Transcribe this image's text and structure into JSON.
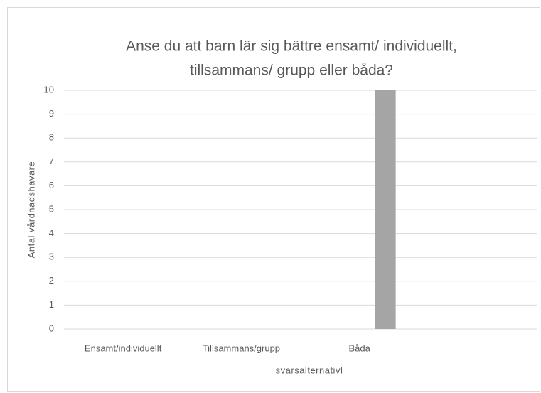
{
  "chart_data": {
    "type": "bar",
    "title": [
      "Anse du att barn lär sig bättre ensamt/ individuellt,",
      "tillsammans/ grupp eller båda?"
    ],
    "x_label": "svarsalternativl",
    "y_label": "Antal vårdnadshavare",
    "categories": [
      "Ensamt/individuellt",
      "Tillsammans/grupp",
      "Båda",
      null
    ],
    "values": [
      0,
      0,
      10,
      null
    ],
    "color": "#a5a5a5",
    "ylim": [
      0,
      10
    ],
    "yticks": [
      0,
      1,
      2,
      3,
      4,
      5,
      6,
      7,
      8,
      9,
      10
    ],
    "grid": true
  }
}
